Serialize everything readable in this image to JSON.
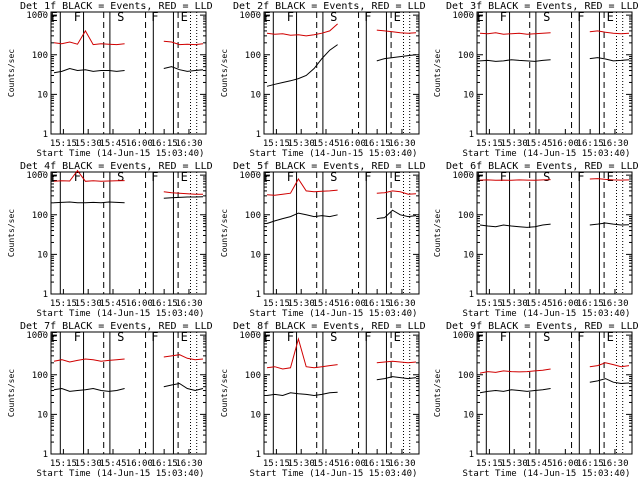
{
  "colors": {
    "events": "#000000",
    "lld": "#d00000",
    "background": "#ffffff"
  },
  "chart_data": [
    {
      "type": "line",
      "title": "Det_1f BLACK = Events, RED = LLD",
      "xlabel": "Start Time (14-Jun-15 15:03:40)",
      "ylabel": "Counts/sec",
      "yscale": "log",
      "ylim": [
        1,
        1000
      ],
      "yticks": [
        "1",
        "10",
        "100",
        "1000"
      ],
      "xticks": [
        "15:15",
        "15:30",
        "15:45",
        "16:00",
        "16:15",
        "16:30"
      ],
      "flags": [
        "E",
        "F",
        "S",
        "F",
        "E"
      ],
      "series": [
        {
          "name": "Events",
          "color": "#000000",
          "values": [
            35,
            38,
            45,
            40,
            42,
            38,
            40,
            40,
            38,
            40,
            null,
            null,
            null,
            null,
            45,
            50,
            42,
            38,
            40,
            42
          ]
        },
        {
          "name": "LLD",
          "color": "#d00000",
          "values": [
            200,
            190,
            210,
            185,
            400,
            180,
            190,
            185,
            180,
            190,
            null,
            null,
            null,
            null,
            220,
            210,
            180,
            185,
            180,
            190
          ]
        }
      ]
    },
    {
      "type": "line",
      "title": "Det_2f BLACK = Events, RED = LLD",
      "xlabel": "Start Time (14-Jun-15 15:03:40)",
      "ylabel": "Counts/sec",
      "yscale": "log",
      "ylim": [
        1,
        1000
      ],
      "yticks": [
        "1",
        "10",
        "100",
        "1000"
      ],
      "xticks": [
        "15:15",
        "15:30",
        "15:45",
        "16:00",
        "16:15",
        "16:30"
      ],
      "flags": [
        "E",
        "F",
        "S",
        "F",
        "E"
      ],
      "series": [
        {
          "name": "Events",
          "color": "#000000",
          "values": [
            16,
            18,
            20,
            22,
            25,
            30,
            45,
            80,
            130,
            180,
            null,
            null,
            null,
            null,
            70,
            80,
            85,
            90,
            95,
            100
          ]
        },
        {
          "name": "LLD",
          "color": "#d00000",
          "values": [
            350,
            330,
            340,
            310,
            320,
            300,
            320,
            350,
            400,
            600,
            null,
            null,
            null,
            null,
            420,
            400,
            380,
            360,
            350,
            360
          ]
        }
      ]
    },
    {
      "type": "line",
      "title": "Det_3f BLACK = Events, RED = LLD",
      "xlabel": "Start Time (14-Jun-15 15:03:40)",
      "ylabel": "Counts/sec",
      "yscale": "log",
      "ylim": [
        1,
        1000
      ],
      "yticks": [
        "1",
        "10",
        "100",
        "1000"
      ],
      "xticks": [
        "15:15",
        "15:30",
        "15:45",
        "16:00",
        "16:15",
        "16:30"
      ],
      "flags": [
        "E",
        "F",
        "S",
        "F",
        "E"
      ],
      "series": [
        {
          "name": "Events",
          "color": "#000000",
          "values": [
            70,
            72,
            68,
            70,
            75,
            72,
            70,
            68,
            72,
            75,
            null,
            null,
            null,
            null,
            80,
            85,
            78,
            70,
            72,
            75
          ]
        },
        {
          "name": "LLD",
          "color": "#d00000",
          "values": [
            350,
            340,
            360,
            330,
            340,
            350,
            330,
            340,
            350,
            360,
            null,
            null,
            null,
            null,
            380,
            400,
            370,
            350,
            340,
            350
          ]
        }
      ]
    },
    {
      "type": "line",
      "title": "Det_4f BLACK = Events, RED = LLD",
      "xlabel": "Start Time (14-Jun-15 15:03:40)",
      "ylabel": "Counts/sec",
      "yscale": "log",
      "ylim": [
        1,
        1000
      ],
      "yticks": [
        "1",
        "10",
        "100",
        "1000"
      ],
      "xticks": [
        "15:15",
        "15:30",
        "15:45",
        "16:00",
        "16:15",
        "16:30"
      ],
      "flags": [
        "E",
        "F",
        "S",
        "F",
        "E"
      ],
      "series": [
        {
          "name": "Events",
          "color": "#000000",
          "values": [
            200,
            205,
            210,
            200,
            200,
            205,
            200,
            210,
            205,
            200,
            null,
            null,
            null,
            null,
            260,
            270,
            275,
            280,
            280,
            285
          ]
        },
        {
          "name": "LLD",
          "color": "#d00000",
          "values": [
            700,
            720,
            710,
            1300,
            700,
            720,
            700,
            710,
            720,
            730,
            null,
            null,
            null,
            null,
            380,
            360,
            350,
            340,
            330,
            330
          ]
        }
      ]
    },
    {
      "type": "line",
      "title": "Det_5f BLACK = Events, RED = LLD",
      "xlabel": "Start Time (14-Jun-15 15:03:40)",
      "ylabel": "Counts/sec",
      "yscale": "log",
      "ylim": [
        1,
        1000
      ],
      "yticks": [
        "1",
        "10",
        "100",
        "1000"
      ],
      "xticks": [
        "15:15",
        "15:30",
        "15:45",
        "16:00",
        "16:15",
        "16:30"
      ],
      "flags": [
        "E",
        "F",
        "S",
        "F",
        "E"
      ],
      "series": [
        {
          "name": "Events",
          "color": "#000000",
          "values": [
            60,
            70,
            80,
            90,
            110,
            100,
            90,
            95,
            90,
            100,
            null,
            null,
            null,
            null,
            80,
            85,
            130,
            100,
            90,
            95
          ]
        },
        {
          "name": "LLD",
          "color": "#d00000",
          "values": [
            320,
            310,
            330,
            350,
            800,
            400,
            380,
            390,
            400,
            420,
            null,
            null,
            null,
            null,
            350,
            360,
            400,
            380,
            330,
            340
          ]
        }
      ]
    },
    {
      "type": "line",
      "title": "Det_6f BLACK = Events, RED = LLD",
      "xlabel": "Start Time (14-Jun-15 15:03:40)",
      "ylabel": "Counts/sec",
      "yscale": "log",
      "ylim": [
        1,
        1000
      ],
      "yticks": [
        "1",
        "10",
        "100",
        "1000"
      ],
      "xticks": [
        "15:15",
        "15:30",
        "15:45",
        "16:00",
        "16:15",
        "16:30"
      ],
      "flags": [
        "E",
        "F",
        "S",
        "F",
        "E"
      ],
      "series": [
        {
          "name": "Events",
          "color": "#000000",
          "values": [
            55,
            52,
            50,
            55,
            52,
            50,
            48,
            50,
            55,
            58,
            null,
            null,
            null,
            null,
            55,
            58,
            62,
            58,
            55,
            56
          ]
        },
        {
          "name": "LLD",
          "color": "#d00000",
          "values": [
            750,
            760,
            740,
            750,
            740,
            760,
            750,
            740,
            760,
            770,
            null,
            null,
            null,
            null,
            800,
            820,
            780,
            760,
            750,
            760
          ]
        }
      ]
    },
    {
      "type": "line",
      "title": "Det_7f BLACK = Events, RED = LLD",
      "xlabel": "Start Time (14-Jun-15 15:03:40)",
      "ylabel": "Counts/sec",
      "yscale": "log",
      "ylim": [
        1,
        1000
      ],
      "yticks": [
        "1",
        "10",
        "100",
        "1000"
      ],
      "xticks": [
        "15:15",
        "15:30",
        "15:45",
        "16:00",
        "16:15",
        "16:30"
      ],
      "flags": [
        "E",
        "F",
        "S",
        "F",
        "E"
      ],
      "series": [
        {
          "name": "Events",
          "color": "#000000",
          "values": [
            42,
            45,
            38,
            40,
            42,
            45,
            40,
            38,
            40,
            45,
            null,
            null,
            null,
            null,
            50,
            55,
            60,
            45,
            40,
            45
          ]
        },
        {
          "name": "LLD",
          "color": "#d00000",
          "values": [
            220,
            240,
            210,
            230,
            250,
            240,
            220,
            230,
            240,
            250,
            null,
            null,
            null,
            null,
            280,
            300,
            320,
            260,
            240,
            250
          ]
        }
      ]
    },
    {
      "type": "line",
      "title": "Det_8f BLACK = Events, RED = LLD",
      "xlabel": "Start Time (14-Jun-15 15:03:40)",
      "ylabel": "Counts/sec",
      "yscale": "log",
      "ylim": [
        1,
        1000
      ],
      "yticks": [
        "1",
        "10",
        "100",
        "1000"
      ],
      "xticks": [
        "15:15",
        "15:30",
        "15:45",
        "16:00",
        "16:15",
        "16:30"
      ],
      "flags": [
        "E",
        "F",
        "S",
        "F",
        "E"
      ],
      "series": [
        {
          "name": "Events",
          "color": "#000000",
          "values": [
            30,
            32,
            30,
            35,
            33,
            32,
            30,
            32,
            35,
            36,
            null,
            null,
            null,
            null,
            75,
            80,
            90,
            85,
            80,
            85
          ]
        },
        {
          "name": "LLD",
          "color": "#d00000",
          "values": [
            150,
            160,
            140,
            150,
            800,
            160,
            150,
            160,
            170,
            180,
            null,
            null,
            null,
            null,
            200,
            210,
            220,
            210,
            200,
            210
          ]
        }
      ]
    },
    {
      "type": "line",
      "title": "Det_9f BLACK = Events, RED = LLD",
      "xlabel": "Start Time (14-Jun-15 15:03:40)",
      "ylabel": "Counts/sec",
      "yscale": "log",
      "ylim": [
        1,
        1000
      ],
      "yticks": [
        "1",
        "10",
        "100",
        "1000"
      ],
      "xticks": [
        "15:15",
        "15:30",
        "15:45",
        "16:00",
        "16:15",
        "16:30"
      ],
      "flags": [
        "E",
        "F",
        "S",
        "F",
        "E"
      ],
      "series": [
        {
          "name": "Events",
          "color": "#000000",
          "values": [
            35,
            38,
            40,
            38,
            42,
            40,
            38,
            40,
            42,
            45,
            null,
            null,
            null,
            null,
            65,
            70,
            80,
            65,
            60,
            62
          ]
        },
        {
          "name": "LLD",
          "color": "#d00000",
          "values": [
            110,
            120,
            115,
            125,
            120,
            118,
            120,
            125,
            130,
            140,
            null,
            null,
            null,
            null,
            160,
            170,
            200,
            180,
            160,
            170
          ]
        }
      ]
    }
  ]
}
